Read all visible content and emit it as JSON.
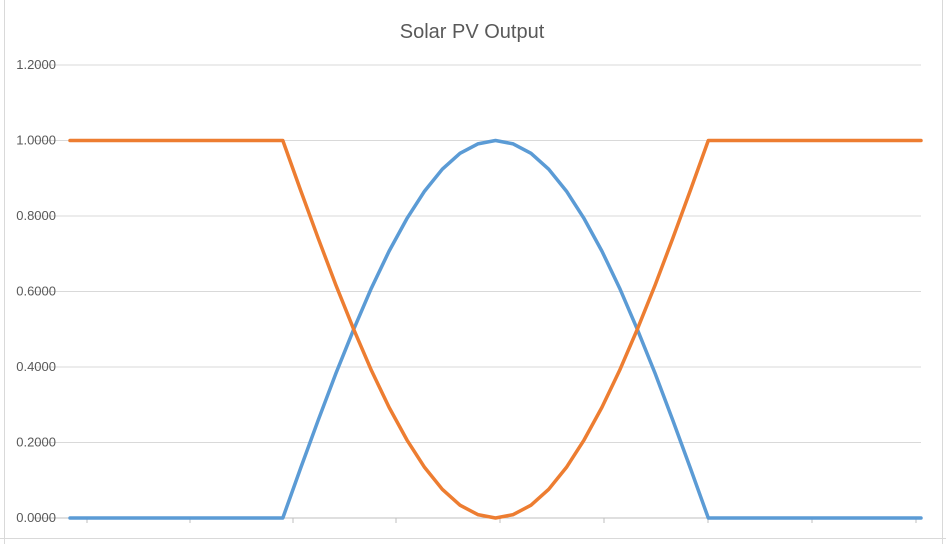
{
  "chart_data": {
    "type": "line",
    "title": "Solar PV Output",
    "xlabel": "",
    "ylabel": "",
    "ylim": [
      0,
      1.2
    ],
    "yticks": [
      "0.0000",
      "0.2000",
      "0.4000",
      "0.6000",
      "0.8000",
      "1.0000",
      "1.2000"
    ],
    "ytick_values": [
      0,
      0.2,
      0.4,
      0.6,
      0.8,
      1.0,
      1.2
    ],
    "xlim": [
      0,
      24
    ],
    "grid": true,
    "legend": "none",
    "x": [
      0,
      1,
      2,
      3,
      4,
      5,
      6,
      6.5,
      7,
      7.5,
      8,
      8.5,
      9,
      9.5,
      10,
      10.5,
      11,
      11.5,
      12,
      12.5,
      13,
      13.5,
      14,
      14.5,
      15,
      15.5,
      16,
      16.5,
      17,
      17.5,
      18,
      19,
      20,
      21,
      22,
      23,
      24
    ],
    "series": [
      {
        "color": "#5b9bd5",
        "values": [
          0,
          0,
          0,
          0,
          0,
          0,
          0,
          0.131,
          0.259,
          0.383,
          0.5,
          0.609,
          0.707,
          0.793,
          0.866,
          0.924,
          0.966,
          0.991,
          1.0,
          0.991,
          0.966,
          0.924,
          0.866,
          0.793,
          0.707,
          0.609,
          0.5,
          0.383,
          0.259,
          0.131,
          0,
          0,
          0,
          0,
          0,
          0,
          0
        ]
      },
      {
        "color": "#ed7d31",
        "values": [
          1,
          1,
          1,
          1,
          1,
          1,
          1,
          0.869,
          0.741,
          0.617,
          0.5,
          0.391,
          0.293,
          0.207,
          0.134,
          0.076,
          0.034,
          0.009,
          0.0,
          0.009,
          0.034,
          0.076,
          0.134,
          0.207,
          0.293,
          0.391,
          0.5,
          0.617,
          0.741,
          0.869,
          1,
          1,
          1,
          1,
          1,
          1,
          1
        ]
      }
    ],
    "grid_color": "#d9d9d9",
    "axis_color": "#bfbfbf"
  }
}
